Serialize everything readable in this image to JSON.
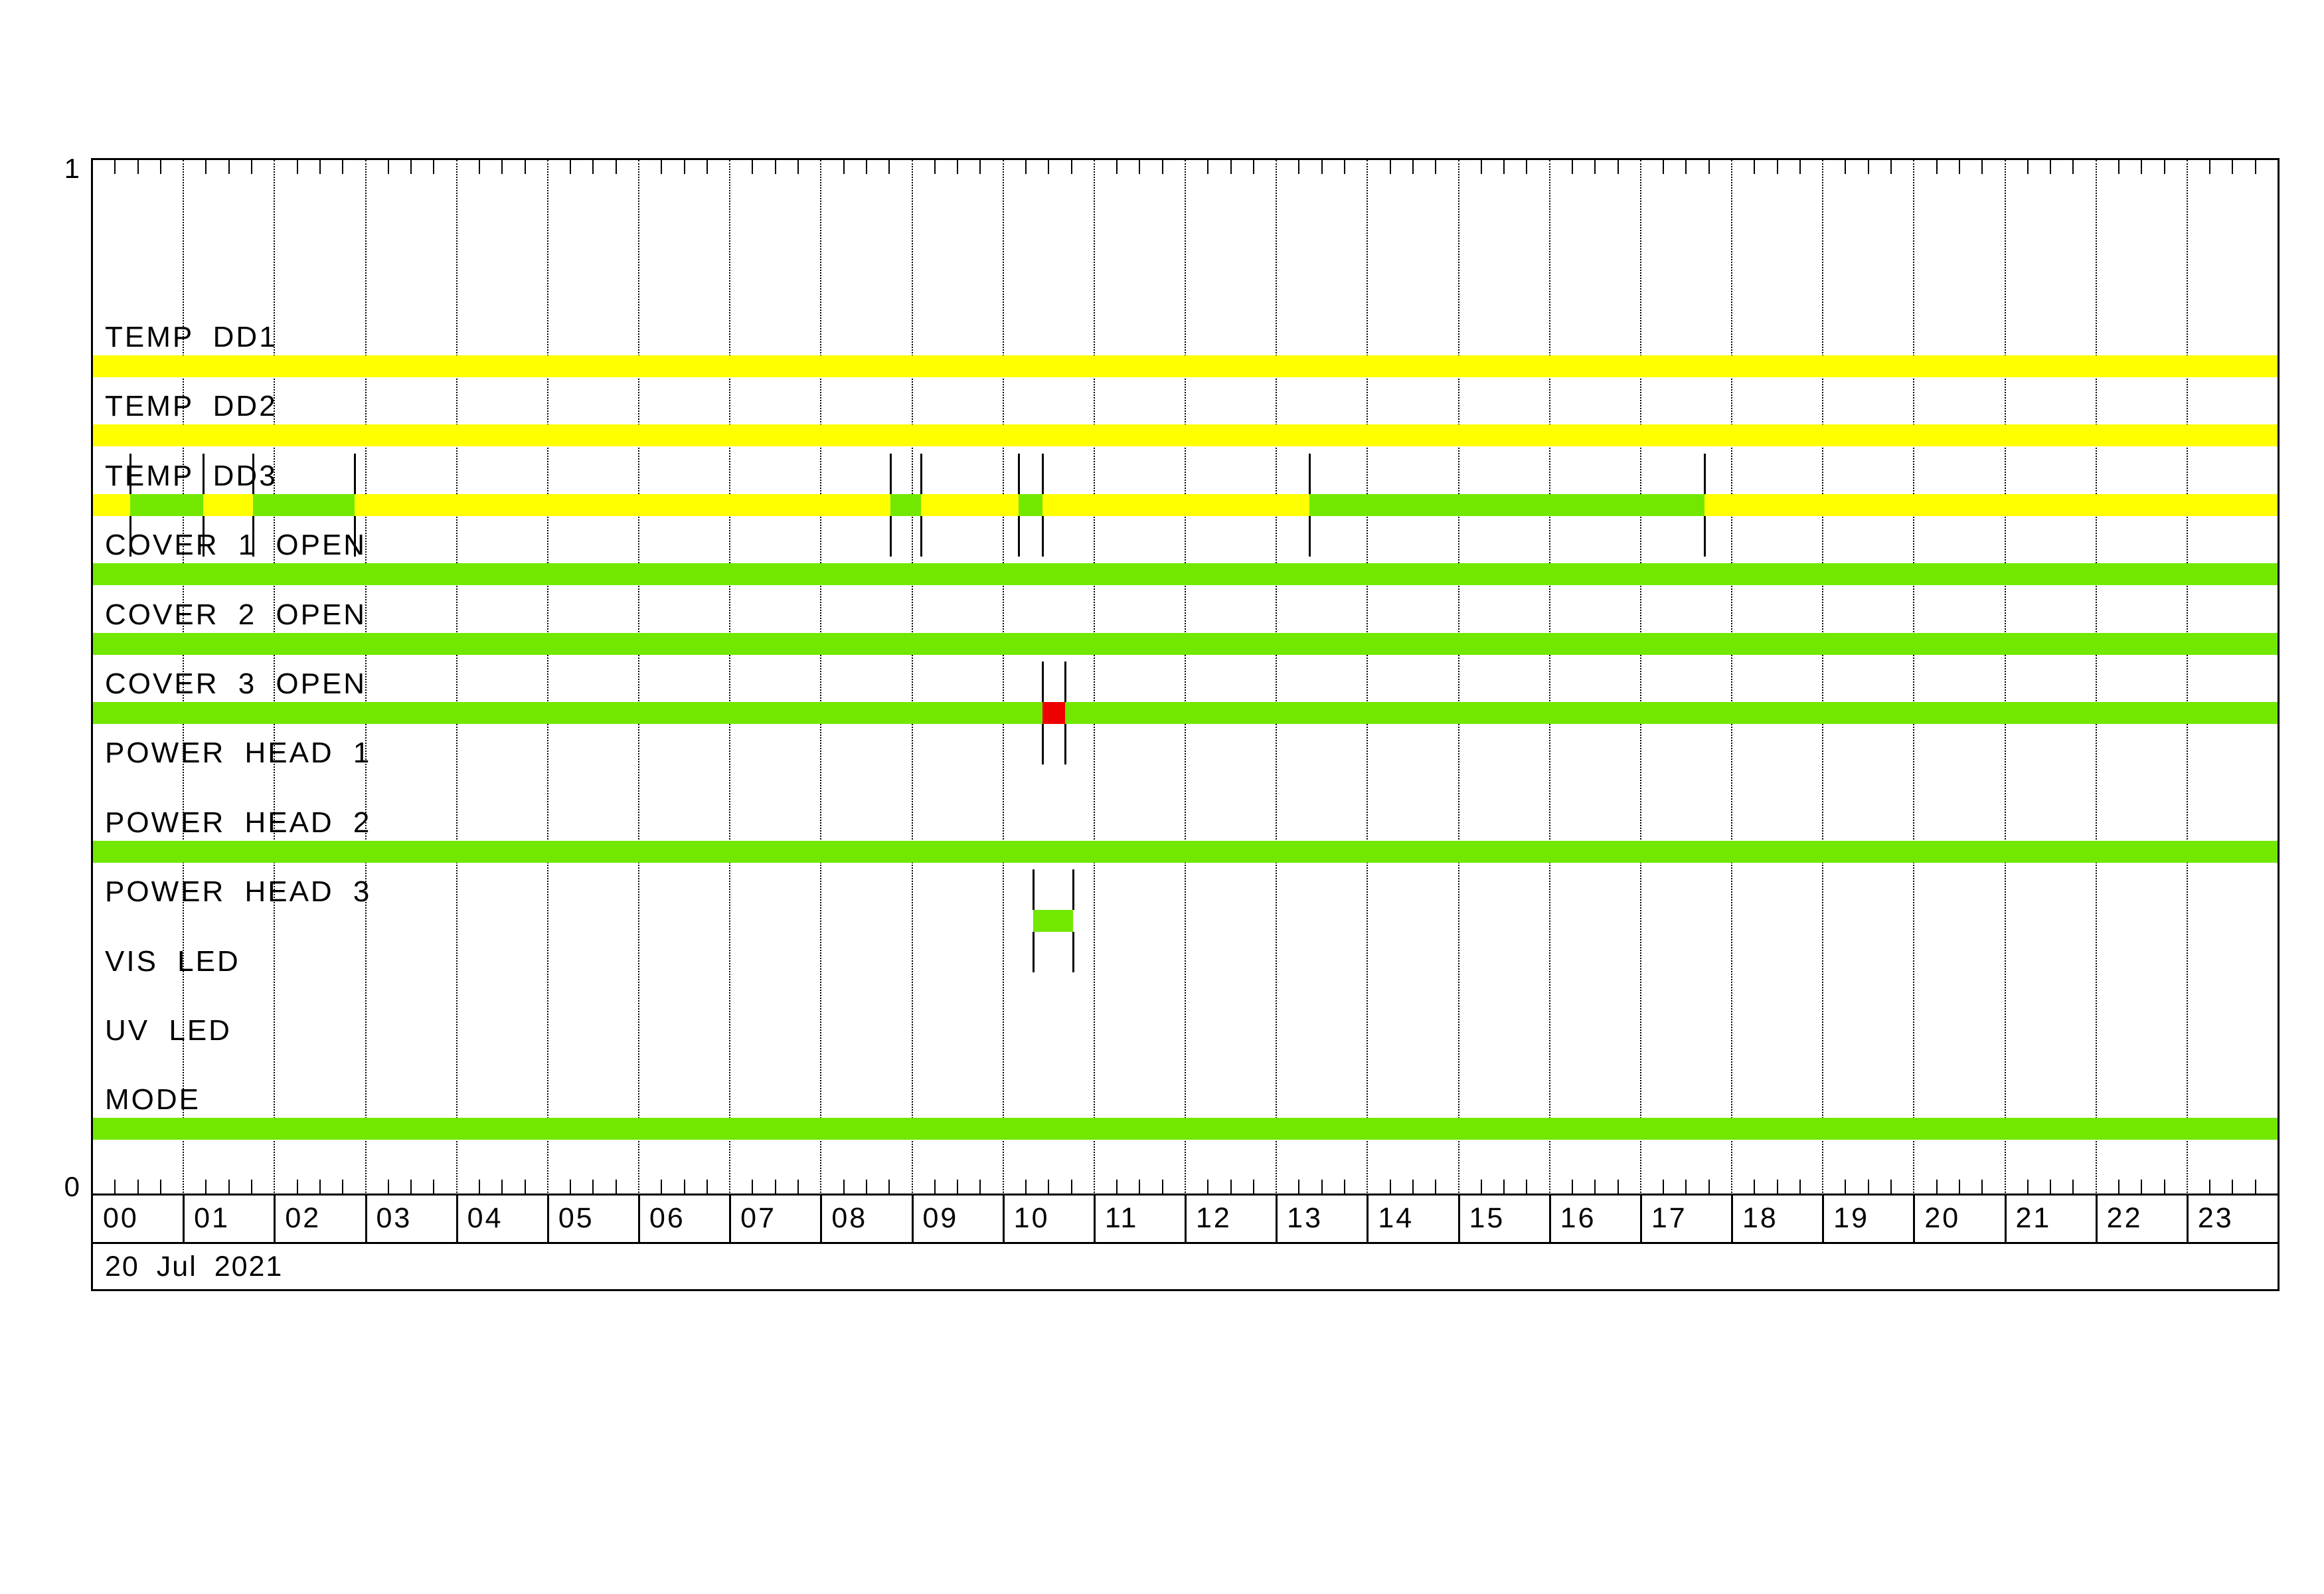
{
  "chart_data": {
    "type": "timeline",
    "title": "",
    "date": "20 Jul 2021",
    "y_axis": {
      "top_label": "1",
      "bottom_label": "0"
    },
    "x_axis": {
      "hours": [
        "00",
        "01",
        "02",
        "03",
        "04",
        "05",
        "06",
        "07",
        "08",
        "09",
        "10",
        "11",
        "12",
        "13",
        "14",
        "15",
        "16",
        "17",
        "18",
        "19",
        "20",
        "21",
        "22",
        "23"
      ],
      "minor_tick_minutes": 15,
      "range": [
        "00:00",
        "24:00"
      ]
    },
    "colors": {
      "yellow": "#FFFF00",
      "green": "#72E800",
      "red": "#EE0000"
    },
    "rows": [
      {
        "label": "TEMP DD1",
        "segments": [
          {
            "start": "00:00",
            "end": "24:00",
            "color": "yellow"
          }
        ],
        "transitions": []
      },
      {
        "label": "TEMP DD2",
        "segments": [
          {
            "start": "00:00",
            "end": "24:00",
            "color": "yellow"
          }
        ],
        "transitions": []
      },
      {
        "label": "TEMP DD3",
        "segments": [
          {
            "start": "00:00",
            "end": "00:25",
            "color": "yellow"
          },
          {
            "start": "00:25",
            "end": "01:13",
            "color": "green"
          },
          {
            "start": "01:13",
            "end": "01:46",
            "color": "yellow"
          },
          {
            "start": "01:46",
            "end": "02:53",
            "color": "green"
          },
          {
            "start": "02:53",
            "end": "08:46",
            "color": "yellow"
          },
          {
            "start": "08:46",
            "end": "09:06",
            "color": "green"
          },
          {
            "start": "09:06",
            "end": "10:10",
            "color": "yellow"
          },
          {
            "start": "10:10",
            "end": "10:26",
            "color": "green"
          },
          {
            "start": "10:26",
            "end": "13:22",
            "color": "yellow"
          },
          {
            "start": "13:22",
            "end": "17:42",
            "color": "green"
          },
          {
            "start": "17:42",
            "end": "24:00",
            "color": "yellow"
          }
        ],
        "transitions": [
          "00:25",
          "01:13",
          "01:46",
          "02:53",
          "08:46",
          "09:06",
          "10:10",
          "10:26",
          "13:22",
          "17:42"
        ]
      },
      {
        "label": "COVER 1 OPEN",
        "segments": [
          {
            "start": "00:00",
            "end": "24:00",
            "color": "green"
          }
        ],
        "transitions": []
      },
      {
        "label": "COVER 2 OPEN",
        "segments": [
          {
            "start": "00:00",
            "end": "24:00",
            "color": "green"
          }
        ],
        "transitions": []
      },
      {
        "label": "COVER 3 OPEN",
        "segments": [
          {
            "start": "00:00",
            "end": "10:26",
            "color": "green"
          },
          {
            "start": "10:26",
            "end": "10:41",
            "color": "red"
          },
          {
            "start": "10:41",
            "end": "24:00",
            "color": "green"
          }
        ],
        "transitions": [
          "10:26",
          "10:41"
        ]
      },
      {
        "label": "POWER HEAD 1",
        "segments": [],
        "transitions": []
      },
      {
        "label": "POWER HEAD 2",
        "segments": [
          {
            "start": "00:00",
            "end": "24:00",
            "color": "green"
          }
        ],
        "transitions": []
      },
      {
        "label": "POWER HEAD 3",
        "segments": [
          {
            "start": "10:20",
            "end": "10:46",
            "color": "green"
          }
        ],
        "transitions": [
          "10:20",
          "10:46"
        ]
      },
      {
        "label": "VIS LED",
        "segments": [],
        "transitions": []
      },
      {
        "label": "UV LED",
        "segments": [],
        "transitions": []
      },
      {
        "label": "MODE",
        "segments": [
          {
            "start": "00:00",
            "end": "24:00",
            "color": "green"
          }
        ],
        "transitions": []
      }
    ]
  }
}
